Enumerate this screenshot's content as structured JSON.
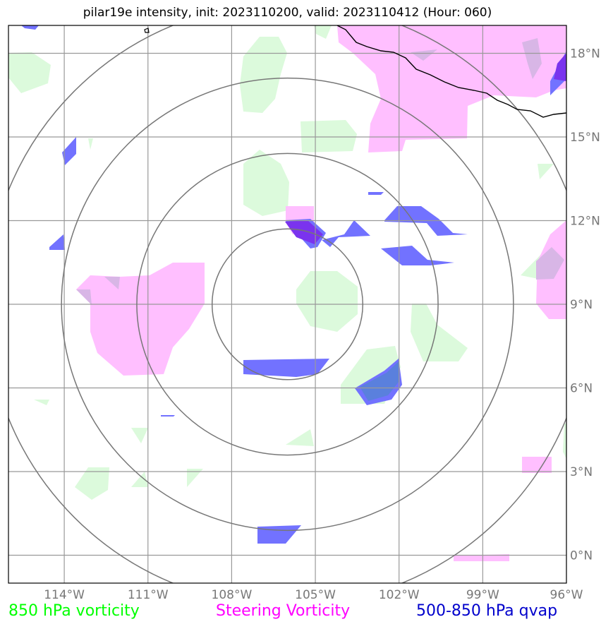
{
  "title": "pilar19e intensity, init: 2023110200, valid: 2023110412 (Hour: 060)",
  "map": {
    "lon_range": [
      -116,
      -96
    ],
    "lat_range": [
      -1,
      19
    ],
    "lon_ticks": [
      {
        "value": -114,
        "label": "114°W"
      },
      {
        "value": -111,
        "label": "111°W"
      },
      {
        "value": -108,
        "label": "108°W"
      },
      {
        "value": -105,
        "label": "105°W"
      },
      {
        "value": -102,
        "label": "102°W"
      },
      {
        "value": -99,
        "label": "99°W"
      },
      {
        "value": -96,
        "label": "96°W"
      }
    ],
    "lat_ticks": [
      {
        "value": 0,
        "label": "0°N"
      },
      {
        "value": 3,
        "label": "3°N"
      },
      {
        "value": 6,
        "label": "6°N"
      },
      {
        "value": 9,
        "label": "9°N"
      },
      {
        "value": 12,
        "label": "12°N"
      },
      {
        "value": 15,
        "label": "15°N"
      },
      {
        "value": 18,
        "label": "18°N"
      }
    ],
    "storm_center": {
      "lon": -106,
      "lat": 9
    },
    "range_rings_deg": [
      2.7,
      5.4,
      8.1,
      10.8
    ],
    "colors": {
      "vorticity_850": "#dcfadc",
      "steering_vorticity": "#ffbfff",
      "qvap": "#7272ff",
      "grid": "#999999",
      "rings": "#777777",
      "coast": "#000000"
    }
  },
  "legend": {
    "vorticity_850": {
      "label": "850 hPa vorticity",
      "color": "#00ff00"
    },
    "steering": {
      "label": "Steering Vorticity",
      "color": "#ff00ff"
    },
    "qvap": {
      "label": "500-850 hPa qvap",
      "color": "#0000cc"
    }
  }
}
